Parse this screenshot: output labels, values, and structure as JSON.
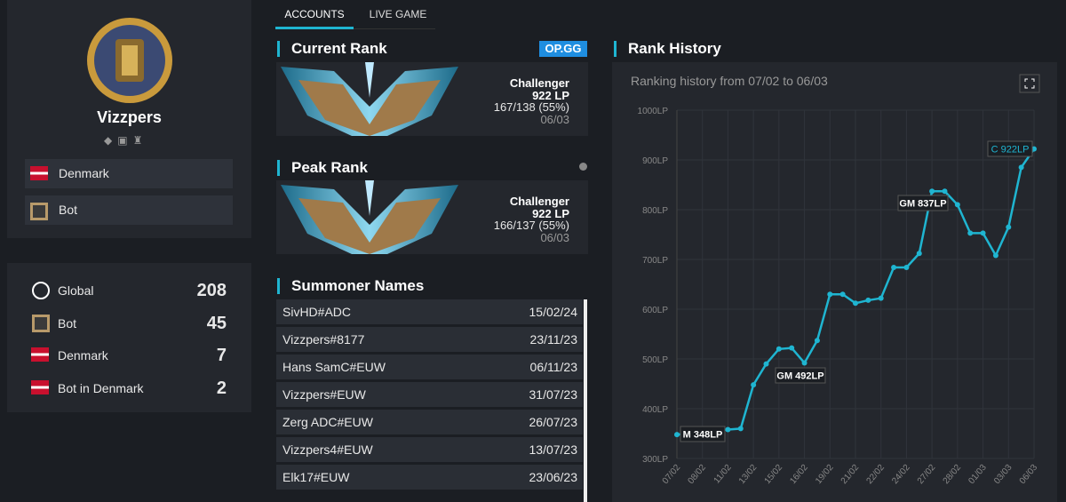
{
  "profile": {
    "name": "Vizzpers",
    "tags": [
      "Denmark",
      "Bot"
    ]
  },
  "stats": [
    {
      "label": "Global",
      "value": "208"
    },
    {
      "label": "Bot",
      "value": "45"
    },
    {
      "label": "Denmark",
      "value": "7"
    },
    {
      "label": "Bot in Denmark",
      "value": "2"
    }
  ],
  "tabs": [
    "ACCOUNTS",
    "LIVE GAME"
  ],
  "current_rank": {
    "heading": "Current Rank",
    "badge": "OP.GG",
    "tier": "Challenger",
    "lp": "922 LP",
    "record": "167/138 (55%)",
    "date": "06/03"
  },
  "peak_rank": {
    "heading": "Peak Rank",
    "tier": "Challenger",
    "lp": "922 LP",
    "record": "166/137 (55%)",
    "date": "06/03"
  },
  "summoner_names": {
    "heading": "Summoner Names",
    "rows": [
      [
        "SivHD#ADC",
        "15/02/24"
      ],
      [
        "Vizzpers#8177",
        "23/11/23"
      ],
      [
        "Hans SamC#EUW",
        "06/11/23"
      ],
      [
        "Vizzpers#EUW",
        "31/07/23"
      ],
      [
        "Zerg ADC#EUW",
        "26/07/23"
      ],
      [
        "Vizzpers4#EUW",
        "13/07/23"
      ],
      [
        "Elk17#EUW",
        "23/06/23"
      ]
    ]
  },
  "rank_history": {
    "heading": "Rank History"
  },
  "chart_data": {
    "type": "line",
    "title": "Ranking history from 07/02 to 06/03",
    "categories": [
      "07/02",
      null,
      "08/02",
      null,
      "11/02",
      null,
      "13/02",
      null,
      "15/02",
      null,
      "16/02",
      null,
      "19/02",
      null,
      "21/02",
      null,
      "22/02",
      null,
      "24/02",
      null,
      "27/02",
      null,
      "28/02",
      null,
      "01/03",
      null,
      "03/03",
      null,
      "06/03"
    ],
    "series": [
      {
        "name": "LP",
        "color": "#1fb5d1",
        "values": [
          348,
          350,
          353,
          356,
          358,
          360,
          448,
          490,
          520,
          522,
          492,
          537,
          630,
          630,
          612,
          618,
          622,
          684,
          684,
          712,
          837,
          837,
          810,
          753,
          753,
          708,
          765,
          885,
          922
        ]
      }
    ],
    "ylim": [
      300,
      1000
    ],
    "yticks": [
      {
        "value": 300,
        "label": "300LP"
      },
      {
        "value": 400,
        "label": "400LP"
      },
      {
        "value": 500,
        "label": "500LP"
      },
      {
        "value": 600,
        "label": "600LP"
      },
      {
        "value": 700,
        "label": "700LP"
      },
      {
        "value": 800,
        "label": "800LP"
      },
      {
        "value": 900,
        "label": "900LP"
      },
      {
        "value": 1000,
        "label": "1000LP"
      }
    ],
    "grid": true,
    "annotations": [
      "M 348LP",
      "GM 492LP",
      "GM 837LP",
      "C 922LP"
    ]
  }
}
